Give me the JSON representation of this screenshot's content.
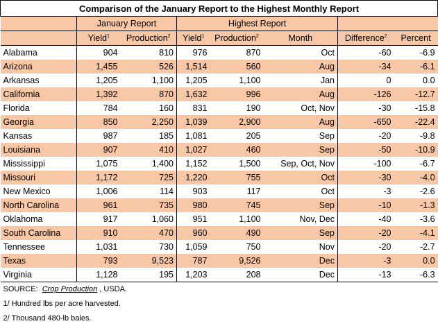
{
  "title": "Comparison of the January Report to the Highest Monthly Report",
  "group_headers": {
    "january": "January Report",
    "highest": "Highest Report"
  },
  "columns": {
    "yield": "Yield",
    "production": "Production",
    "month": "Month",
    "difference": "Difference",
    "percent": "Percent",
    "note1": "1",
    "note2": "2"
  },
  "rows": [
    {
      "state": "Alabama",
      "jan_yield": "904",
      "jan_prod": "810",
      "hi_yield": "976",
      "hi_prod": "870",
      "month": "Oct",
      "diff": "-60",
      "pct": "-6.9"
    },
    {
      "state": "Arizona",
      "jan_yield": "1,455",
      "jan_prod": "526",
      "hi_yield": "1,514",
      "hi_prod": "560",
      "month": "Aug",
      "diff": "-34",
      "pct": "-6.1"
    },
    {
      "state": "Arkansas",
      "jan_yield": "1,205",
      "jan_prod": "1,100",
      "hi_yield": "1,205",
      "hi_prod": "1,100",
      "month": "Jan",
      "diff": "0",
      "pct": "0.0"
    },
    {
      "state": "California",
      "jan_yield": "1,392",
      "jan_prod": "870",
      "hi_yield": "1,632",
      "hi_prod": "996",
      "month": "Aug",
      "diff": "-126",
      "pct": "-12.7"
    },
    {
      "state": "Florida",
      "jan_yield": "784",
      "jan_prod": "160",
      "hi_yield": "831",
      "hi_prod": "190",
      "month": "Oct, Nov",
      "diff": "-30",
      "pct": "-15.8"
    },
    {
      "state": "Georgia",
      "jan_yield": "850",
      "jan_prod": "2,250",
      "hi_yield": "1,039",
      "hi_prod": "2,900",
      "month": "Aug",
      "diff": "-650",
      "pct": "-22.4"
    },
    {
      "state": "Kansas",
      "jan_yield": "987",
      "jan_prod": "185",
      "hi_yield": "1,081",
      "hi_prod": "205",
      "month": "Sep",
      "diff": "-20",
      "pct": "-9.8"
    },
    {
      "state": "Louisiana",
      "jan_yield": "907",
      "jan_prod": "410",
      "hi_yield": "1,027",
      "hi_prod": "460",
      "month": "Sep",
      "diff": "-50",
      "pct": "-10.9"
    },
    {
      "state": "Mississippi",
      "jan_yield": "1,075",
      "jan_prod": "1,400",
      "hi_yield": "1,152",
      "hi_prod": "1,500",
      "month": "Sep, Oct, Nov",
      "diff": "-100",
      "pct": "-6.7"
    },
    {
      "state": "Missouri",
      "jan_yield": "1,172",
      "jan_prod": "725",
      "hi_yield": "1,220",
      "hi_prod": "755",
      "month": "Oct",
      "diff": "-30",
      "pct": "-4.0"
    },
    {
      "state": "New Mexico",
      "jan_yield": "1,006",
      "jan_prod": "114",
      "hi_yield": "903",
      "hi_prod": "117",
      "month": "Oct",
      "diff": "-3",
      "pct": "-2.6"
    },
    {
      "state": "North Carolina",
      "jan_yield": "961",
      "jan_prod": "735",
      "hi_yield": "980",
      "hi_prod": "745",
      "month": "Sep",
      "diff": "-10",
      "pct": "-1.3"
    },
    {
      "state": "Oklahoma",
      "jan_yield": "917",
      "jan_prod": "1,060",
      "hi_yield": "951",
      "hi_prod": "1,100",
      "month": "Nov, Dec",
      "diff": "-40",
      "pct": "-3.6"
    },
    {
      "state": "South Carolina",
      "jan_yield": "910",
      "jan_prod": "470",
      "hi_yield": "960",
      "hi_prod": "490",
      "month": "Sep",
      "diff": "-20",
      "pct": "-4.1"
    },
    {
      "state": "Tennessee",
      "jan_yield": "1,031",
      "jan_prod": "730",
      "hi_yield": "1,059",
      "hi_prod": "750",
      "month": "Nov",
      "diff": "-20",
      "pct": "-2.7"
    },
    {
      "state": "Texas",
      "jan_yield": "793",
      "jan_prod": "9,523",
      "hi_yield": "787",
      "hi_prod": "9,526",
      "month": "Dec",
      "diff": "-3",
      "pct": "0.0"
    },
    {
      "state": "Virginia",
      "jan_yield": "1,128",
      "jan_prod": "195",
      "hi_yield": "1,203",
      "hi_prod": "208",
      "month": "Dec",
      "diff": "-13",
      "pct": "-6.3"
    }
  ],
  "footer": {
    "source_prefix": "SOURCE:  ",
    "source_link": "Crop Production",
    "source_suffix": " , USDA.",
    "note1": "1/ Hundred lbs per acre harvested.",
    "note2": "2/ Thousand 480-lb bales."
  },
  "colors": {
    "band": "#f8c7a6",
    "background": "#ffffff",
    "border": "#000000"
  }
}
